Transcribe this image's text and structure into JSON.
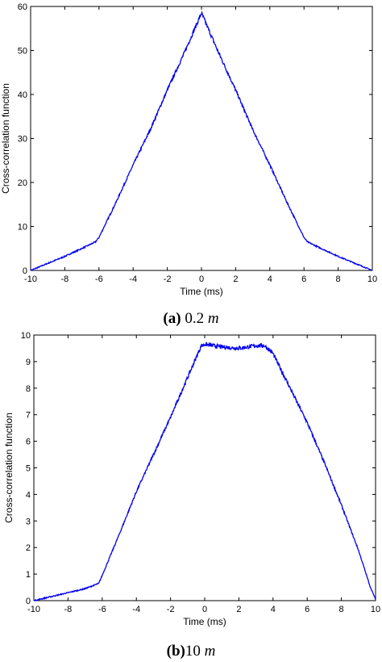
{
  "captions": [
    {
      "letter": "(a)",
      "text": " 0.2 ",
      "unit": "m"
    },
    {
      "letter": "(b)",
      "text": "10 ",
      "unit": "m"
    }
  ],
  "chart_data": [
    {
      "type": "line",
      "xlabel": "Time (ms)",
      "ylabel": "Cross-correlation function",
      "xlim": [
        -10,
        10
      ],
      "ylim": [
        0,
        60
      ],
      "xticks": [
        -10,
        -8,
        -6,
        -4,
        -2,
        0,
        2,
        4,
        6,
        8,
        10
      ],
      "yticks": [
        0,
        10,
        20,
        30,
        40,
        50,
        60
      ],
      "grid": false,
      "line_color": "#0000ee",
      "series": [
        {
          "x": [
            -10,
            -9,
            -8,
            -7,
            -6.2,
            -6,
            -5,
            -4,
            -3,
            -2,
            -1,
            0,
            1,
            2,
            3,
            4,
            5,
            6,
            6.2,
            7,
            8,
            9,
            10
          ],
          "values": [
            0,
            1.6,
            3.2,
            5,
            6.5,
            7.5,
            15.5,
            24,
            32,
            41,
            49.5,
            58.5,
            49.5,
            41,
            32,
            24,
            15.5,
            7.5,
            6.5,
            5,
            3.2,
            1.6,
            0
          ]
        }
      ]
    },
    {
      "type": "line",
      "xlabel": "Time (ms)",
      "ylabel": "Cross-correlation function",
      "xlim": [
        -10,
        10
      ],
      "ylim": [
        0,
        10
      ],
      "xticks": [
        -10,
        -8,
        -6,
        -4,
        -2,
        0,
        2,
        4,
        6,
        8,
        10
      ],
      "yticks": [
        0,
        1,
        2,
        3,
        4,
        5,
        6,
        7,
        8,
        9,
        10
      ],
      "grid": false,
      "line_color": "#0000ee",
      "series": [
        {
          "x": [
            -10,
            -9,
            -8,
            -7,
            -6.2,
            -6,
            -5,
            -4,
            -3,
            -2,
            -1,
            -0.2,
            0,
            1,
            2,
            3,
            3.5,
            4,
            5,
            6,
            7,
            8,
            9,
            9.7,
            10
          ],
          "values": [
            0,
            0.15,
            0.3,
            0.45,
            0.65,
            0.95,
            2.5,
            4.1,
            5.5,
            6.9,
            8.4,
            9.6,
            9.65,
            9.55,
            9.5,
            9.6,
            9.6,
            9.3,
            8.0,
            6.7,
            5.2,
            3.6,
            1.9,
            0.5,
            0.05
          ]
        }
      ]
    }
  ]
}
